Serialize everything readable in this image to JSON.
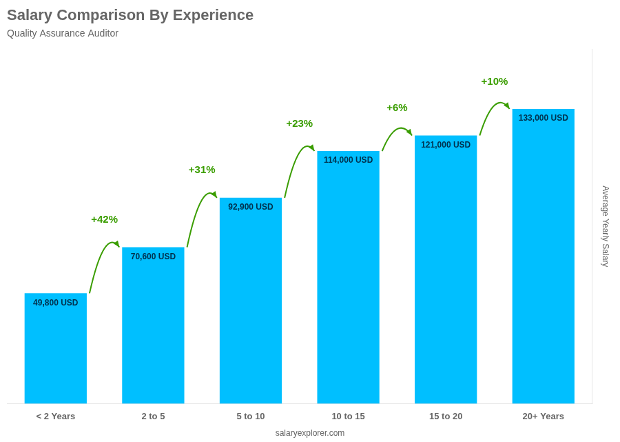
{
  "chart_data": {
    "type": "bar",
    "title": "Salary Comparison By Experience",
    "subtitle": "Quality Assurance Auditor",
    "categories": [
      "< 2 Years",
      "2 to 5",
      "5 to 10",
      "10 to 15",
      "15 to 20",
      "20+ Years"
    ],
    "values": [
      49800,
      70600,
      92900,
      114000,
      121000,
      133000
    ],
    "value_labels": [
      "49,800 USD",
      "70,600 USD",
      "92,900 USD",
      "114,000 USD",
      "121,000 USD",
      "133,000 USD"
    ],
    "data_labels": true,
    "annotations": [
      "+42%",
      "+31%",
      "+23%",
      "+6%",
      "+10%"
    ],
    "ylabel": "Average Yearly Salary",
    "footer": "salaryexplorer.com",
    "color": "#00BFFF",
    "ylim": [
      0,
      160000
    ],
    "tick_labels": "x",
    "grid": false
  }
}
